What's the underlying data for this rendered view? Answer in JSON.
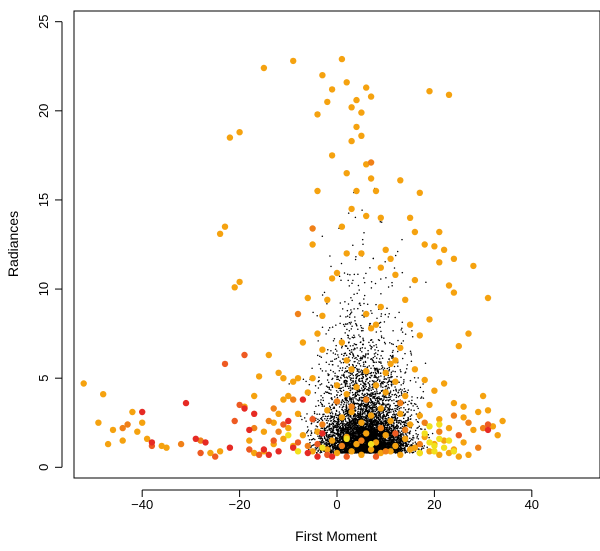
{
  "chart_data": {
    "type": "scatter",
    "title": "",
    "xlabel": "First Moment",
    "ylabel": "Radiances",
    "xlim": [
      -54,
      54
    ],
    "ylim": [
      -0.6,
      25.6
    ],
    "xticks": [
      -40,
      -20,
      0,
      20,
      40
    ],
    "xtick_labels": [
      "−40",
      "−20",
      "0",
      "20",
      "40"
    ],
    "yticks": [
      0,
      5,
      10,
      15,
      20,
      25
    ],
    "ytick_labels": [
      "0",
      "5",
      "10",
      "15",
      "20",
      "25"
    ],
    "grid": false,
    "legend": "none",
    "colors": {
      "background_points": "#000000",
      "orange": "#f5a20f",
      "dark_orange": "#f08018",
      "red_orange": "#ee5a22",
      "red": "#e62a24",
      "yellow": "#f2e01e"
    },
    "background_points_description": "dense cloud of small black dots centered near x=5, y<10",
    "series": [
      {
        "name": "orange",
        "color": "#f5a20f",
        "points": [
          [
            -9,
            22.8
          ],
          [
            -15,
            22.4
          ],
          [
            -4,
            19.8
          ],
          [
            -3,
            22
          ],
          [
            -2,
            20.5
          ],
          [
            -1,
            21.2
          ],
          [
            -1,
            17.5
          ],
          [
            -4,
            15.5
          ],
          [
            -5,
            12.5
          ],
          [
            -6,
            9.5
          ],
          [
            -7,
            7
          ],
          [
            -8,
            5
          ],
          [
            -9,
            4.8
          ],
          [
            -10,
            4
          ],
          [
            -11,
            3.8
          ],
          [
            -12,
            3
          ],
          [
            -13,
            2.5
          ],
          [
            -15,
            2
          ],
          [
            -18,
            1.5
          ],
          [
            -20,
            18.8
          ],
          [
            -22,
            18.5
          ],
          [
            -23,
            13.5
          ],
          [
            -24,
            13.1
          ],
          [
            -20,
            10.4
          ],
          [
            -21,
            10.1
          ],
          [
            -48,
            4.1
          ],
          [
            -52,
            4.7
          ],
          [
            -49,
            2.5
          ],
          [
            -46,
            2.1
          ],
          [
            -44,
            1.5
          ],
          [
            -42,
            3.1
          ],
          [
            -40,
            2.5
          ],
          [
            -36,
            1.2
          ],
          [
            -35,
            1.1
          ],
          [
            -39,
            1.6
          ],
          [
            -41,
            2
          ],
          [
            -47,
            1.3
          ],
          [
            -26,
            0.8
          ],
          [
            -24,
            0.9
          ],
          [
            1,
            22.9
          ],
          [
            2,
            21.6
          ],
          [
            3,
            20.2
          ],
          [
            4,
            19.1
          ],
          [
            5,
            19.9
          ],
          [
            6,
            21.3
          ],
          [
            7,
            20.8
          ],
          [
            4,
            20.6
          ],
          [
            3,
            18.3
          ],
          [
            5,
            18.6
          ],
          [
            6,
            17
          ],
          [
            7,
            16.2
          ],
          [
            8,
            15.5
          ],
          [
            2,
            16.5
          ],
          [
            3,
            14.5
          ],
          [
            4,
            15.5
          ],
          [
            1,
            13.5
          ],
          [
            2,
            12
          ],
          [
            5,
            12
          ],
          [
            9,
            11.2
          ],
          [
            12,
            10.8
          ],
          [
            14,
            9.4
          ],
          [
            16,
            10.5
          ],
          [
            18,
            12.5
          ],
          [
            20,
            12.4
          ],
          [
            21,
            11.5
          ],
          [
            22,
            12.2
          ],
          [
            23,
            10.2
          ],
          [
            24,
            9.8
          ],
          [
            19,
            8.3
          ],
          [
            17,
            7.4
          ],
          [
            15,
            8
          ],
          [
            13,
            6.7
          ],
          [
            12,
            6
          ],
          [
            11,
            5.8
          ],
          [
            10,
            5.3
          ],
          [
            9,
            9
          ],
          [
            8,
            8
          ],
          [
            7,
            7.8
          ],
          [
            6,
            8.6
          ],
          [
            0,
            10.9
          ],
          [
            -1,
            10.6
          ],
          [
            -2,
            9.4
          ],
          [
            -3,
            8.5
          ],
          [
            -4,
            7.5
          ],
          [
            1,
            7
          ],
          [
            2,
            6
          ],
          [
            3,
            5.5
          ],
          [
            21,
            13.2
          ],
          [
            24,
            11.7
          ],
          [
            28,
            11.3
          ],
          [
            31,
            9.5
          ],
          [
            27,
            7.5
          ],
          [
            25,
            6.8
          ],
          [
            30,
            4
          ],
          [
            32,
            2.3
          ],
          [
            33,
            1.8
          ],
          [
            34,
            2.6
          ],
          [
            29,
            3.1
          ],
          [
            31,
            3.2
          ],
          [
            26,
            3.4
          ],
          [
            19,
            21.1
          ],
          [
            23,
            20.9
          ],
          [
            17,
            15.4
          ],
          [
            13,
            16.1
          ],
          [
            10,
            12.2
          ],
          [
            11,
            11.7
          ],
          [
            15,
            14
          ],
          [
            16,
            13.2
          ],
          [
            9,
            14
          ],
          [
            6,
            14.1
          ],
          [
            -14,
            6.3
          ],
          [
            -16,
            5.1
          ],
          [
            -17,
            4
          ],
          [
            -19,
            3.4
          ],
          [
            -12,
            5.3
          ],
          [
            -11,
            5
          ],
          [
            -10,
            2.2
          ],
          [
            -8,
            3
          ],
          [
            -6,
            4.2
          ],
          [
            -5,
            5
          ],
          [
            -3,
            6.6
          ],
          [
            0,
            4.6
          ],
          [
            2,
            4.1
          ],
          [
            4,
            4.5
          ],
          [
            6,
            5.4
          ],
          [
            8,
            4.6
          ],
          [
            10,
            4.2
          ],
          [
            12,
            4.8
          ],
          [
            14,
            4
          ],
          [
            16,
            5.5
          ],
          [
            18,
            4.9
          ],
          [
            20,
            4.3
          ],
          [
            22,
            4.7
          ],
          [
            24,
            3.6
          ],
          [
            26,
            2.8
          ],
          [
            28,
            2.1
          ],
          [
            -2,
            3.2
          ],
          [
            1,
            2.8
          ],
          [
            3,
            3.1
          ],
          [
            5,
            2.5
          ],
          [
            7,
            2.9
          ],
          [
            9,
            3.3
          ],
          [
            11,
            2.6
          ],
          [
            13,
            3
          ],
          [
            15,
            2.4
          ],
          [
            17,
            2.9
          ],
          [
            19,
            3.5
          ],
          [
            21,
            2.7
          ],
          [
            23,
            2.2
          ],
          [
            -7,
            1.8
          ],
          [
            -4,
            2
          ],
          [
            -1,
            1.5
          ],
          [
            2,
            1.7
          ],
          [
            4,
            1.3
          ],
          [
            6,
            1.9
          ],
          [
            8,
            1.4
          ],
          [
            10,
            1.8
          ],
          [
            12,
            1.2
          ],
          [
            14,
            1.6
          ],
          [
            16,
            1.1
          ],
          [
            18,
            1.7
          ],
          [
            20,
            1.3
          ],
          [
            22,
            1.5
          ],
          [
            24,
            1
          ],
          [
            26,
            1.4
          ],
          [
            -5,
            0.9
          ],
          [
            -2,
            1
          ],
          [
            0,
            0.8
          ],
          [
            3,
            0.9
          ],
          [
            5,
            0.7
          ],
          [
            7,
            1
          ],
          [
            9,
            0.8
          ],
          [
            11,
            0.9
          ],
          [
            13,
            0.7
          ],
          [
            15,
            1
          ],
          [
            17,
            0.8
          ],
          [
            19,
            0.9
          ],
          [
            21,
            0.7
          ],
          [
            23,
            0.8
          ],
          [
            25,
            0.6
          ],
          [
            27,
            0.7
          ],
          [
            -9,
            1.2
          ],
          [
            -11,
            1.6
          ],
          [
            -13,
            1.3
          ],
          [
            -15,
            0.9
          ],
          [
            -17,
            0.8
          ]
        ]
      },
      {
        "name": "dark_orange",
        "color": "#f08018",
        "points": [
          [
            -5,
            13.4
          ],
          [
            7,
            17.1
          ],
          [
            -8,
            8.6
          ],
          [
            -13,
            3.3
          ],
          [
            -14,
            2.6
          ],
          [
            -17,
            2.2
          ],
          [
            -12,
            2
          ],
          [
            -28,
            1.5
          ],
          [
            -32,
            1.3
          ],
          [
            -43,
            2.4
          ],
          [
            -44,
            2.2
          ],
          [
            0,
            3.7
          ],
          [
            3,
            3.4
          ],
          [
            6,
            3.8
          ],
          [
            9,
            2.2
          ],
          [
            13,
            3.6
          ],
          [
            18,
            2.5
          ],
          [
            24,
            2.9
          ],
          [
            27,
            2.5
          ],
          [
            29,
            1.1
          ],
          [
            -3,
            2.4
          ],
          [
            1,
            1.2
          ],
          [
            5,
            1.5
          ],
          [
            10,
            0.9
          ],
          [
            14,
            2.1
          ],
          [
            17,
            1.3
          ],
          [
            21,
            2
          ],
          [
            -6,
            1.2
          ],
          [
            -9,
            3.8
          ],
          [
            30,
            2.2
          ]
        ]
      },
      {
        "name": "red_orange",
        "color": "#ee5a22",
        "points": [
          [
            -21,
            2.6
          ],
          [
            -19,
            6.3
          ],
          [
            -23,
            5.8
          ],
          [
            -38,
            1.2
          ],
          [
            -28,
            0.8
          ],
          [
            -25,
            0.6
          ],
          [
            -18,
            1
          ],
          [
            -16,
            0.7
          ],
          [
            -13,
            1.5
          ],
          [
            -11,
            2.4
          ],
          [
            -8,
            1.4
          ],
          [
            -5,
            2.7
          ],
          [
            25,
            1.8
          ],
          [
            31,
            2.4
          ],
          [
            -20,
            3.5
          ],
          [
            -4,
            1.3
          ],
          [
            -2,
            0.7
          ],
          [
            2,
            0.6
          ],
          [
            8,
            0.6
          ],
          [
            12,
            1.9
          ]
        ]
      },
      {
        "name": "red",
        "color": "#e62a24",
        "points": [
          [
            -31,
            3.6
          ],
          [
            -40,
            3.1
          ],
          [
            -38,
            1.4
          ],
          [
            -29,
            1.6
          ],
          [
            -27,
            1.4
          ],
          [
            -19,
            3.3
          ],
          [
            -17,
            3
          ],
          [
            -18,
            2.1
          ],
          [
            -22,
            1.1
          ],
          [
            -15,
            1
          ],
          [
            -12,
            0.9
          ],
          [
            -10,
            2.6
          ],
          [
            -9,
            1.1
          ],
          [
            -6,
            0.8
          ],
          [
            -4,
            0.6
          ],
          [
            -14,
            0.7
          ],
          [
            -7,
            3.8
          ],
          [
            -3,
            1.9
          ],
          [
            -1,
            0.6
          ],
          [
            31,
            2.1
          ]
        ]
      },
      {
        "name": "yellow",
        "color": "#f2e01e",
        "points": [
          [
            19,
            1.4
          ],
          [
            20,
            1.2
          ],
          [
            21,
            1.6
          ],
          [
            22,
            1.1
          ],
          [
            18,
            1.9
          ],
          [
            20,
            0.9
          ],
          [
            23,
            1.5
          ],
          [
            19,
            2.3
          ],
          [
            21,
            2.4
          ],
          [
            17,
            0.8
          ],
          [
            24,
            0.9
          ],
          [
            -10,
            1.8
          ],
          [
            -8,
            0.9
          ],
          [
            -3,
            1.1
          ],
          [
            2,
            1.6
          ],
          [
            7,
            1.3
          ]
        ]
      }
    ]
  }
}
